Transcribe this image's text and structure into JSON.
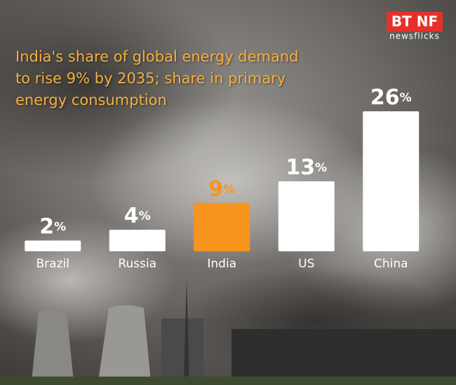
{
  "chart_data": {
    "type": "bar",
    "title": "India's share of global energy demand to rise 9% by 2035; share in primary energy consumption",
    "brand": "BT NF",
    "brand_sub": "newsflicks",
    "categories": [
      "Brazil",
      "Russia",
      "India",
      "US",
      "China"
    ],
    "values": [
      2,
      4,
      9,
      13,
      26
    ],
    "value_labels": [
      "2%",
      "4%",
      "9%",
      "13%",
      "26%"
    ],
    "colors": [
      "#ffffff",
      "#ffffff",
      "#f7941d",
      "#ffffff",
      "#ffffff"
    ],
    "ylim": [
      0,
      26
    ]
  }
}
